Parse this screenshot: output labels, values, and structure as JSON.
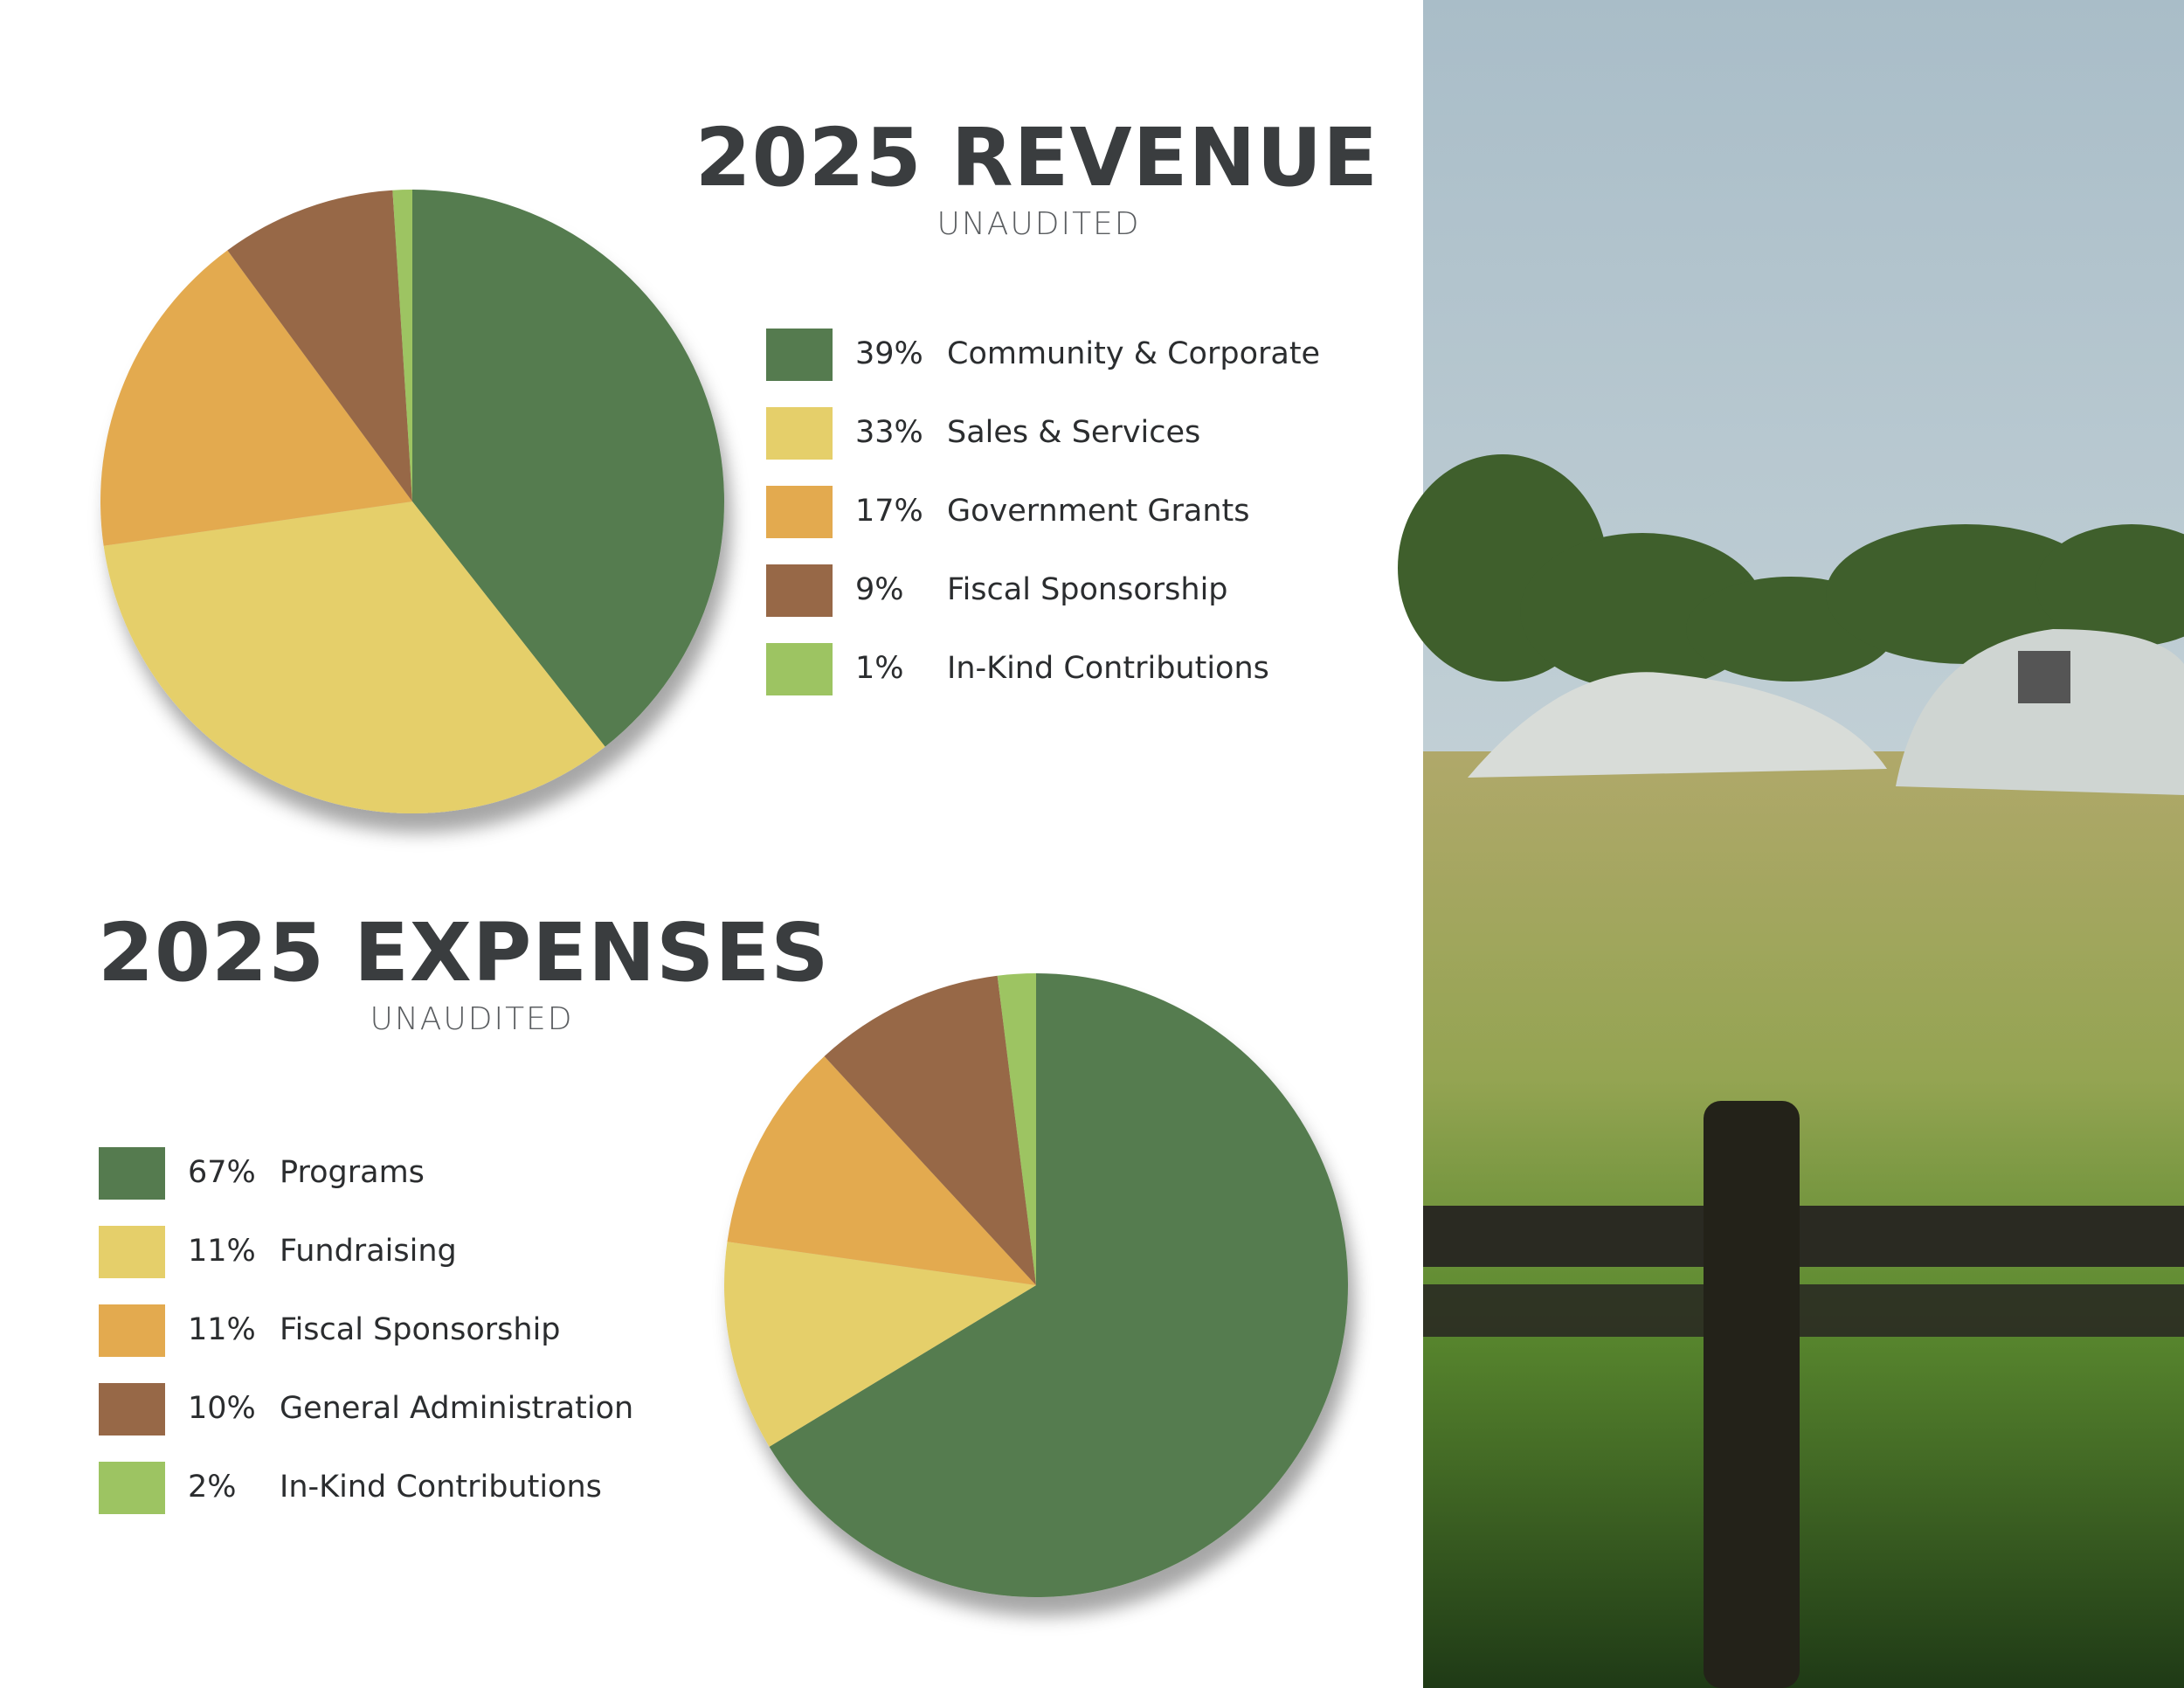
{
  "chart_data": [
    {
      "type": "pie",
      "title": "2025 REVENUE",
      "subtitle": "UNAUDITED",
      "categories": [
        "Community & Corporate",
        "Sales & Services",
        "Government Grants",
        "Fiscal Sponsorship",
        "In-Kind Contributions"
      ],
      "values": [
        39,
        33,
        17,
        9,
        1
      ],
      "value_labels": [
        "39%",
        "33%",
        "17%",
        "9%",
        "1%"
      ],
      "colors": [
        "#557b4f",
        "#e5cf6a",
        "#e3aa4f",
        "#976847",
        "#9dc462"
      ]
    },
    {
      "type": "pie",
      "title": "2025 EXPENSES",
      "subtitle": "UNAUDITED",
      "categories": [
        "Programs",
        "Fundraising",
        "Fiscal Sponsorship",
        "General Administration",
        "In-Kind Contributions"
      ],
      "values": [
        67,
        11,
        11,
        10,
        2
      ],
      "value_labels": [
        "67%",
        "11%",
        "11%",
        "10%",
        "2%"
      ],
      "colors": [
        "#557b4f",
        "#e5cf6a",
        "#e3aa4f",
        "#976847",
        "#9dc462"
      ]
    }
  ]
}
